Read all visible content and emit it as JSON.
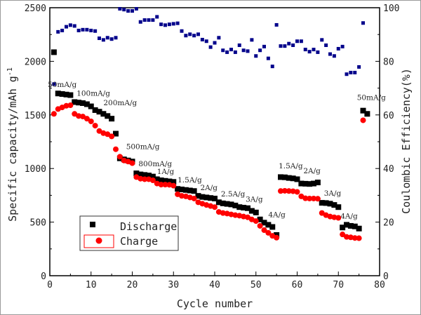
{
  "chart_data": {
    "type": "scatter",
    "xlabel": "Cycle number",
    "ylabel": "Specific capacity/mAh g",
    "ylabel_superscript": "-1",
    "y2label": "Coulombic Efficiency(%)",
    "xlim": [
      0,
      80
    ],
    "ylim": [
      0,
      2500
    ],
    "y2lim": [
      0,
      100
    ],
    "xticks": [
      0,
      10,
      20,
      30,
      40,
      50,
      60,
      70,
      80
    ],
    "yticks": [
      0,
      500,
      1000,
      1500,
      2000,
      2500
    ],
    "y2ticks": [
      0,
      20,
      40,
      60,
      80,
      100
    ],
    "grid": false,
    "legend": {
      "placement": "bottom-left",
      "entries": [
        "Discharge",
        "Charge"
      ]
    },
    "series": [
      {
        "name": "Discharge",
        "axis": "left",
        "marker": "square",
        "color": "#000000",
        "x": [
          1,
          2,
          3,
          4,
          5,
          6,
          7,
          8,
          9,
          10,
          11,
          12,
          13,
          14,
          15,
          16,
          17,
          18,
          19,
          20,
          21,
          22,
          23,
          24,
          25,
          26,
          27,
          28,
          29,
          30,
          31,
          32,
          33,
          34,
          35,
          36,
          37,
          38,
          39,
          40,
          41,
          42,
          43,
          44,
          45,
          46,
          47,
          48,
          49,
          50,
          51,
          52,
          53,
          54,
          55,
          56,
          57,
          58,
          59,
          60,
          61,
          62,
          63,
          64,
          65,
          66,
          67,
          68,
          69,
          70,
          71,
          72,
          73,
          74,
          75,
          76,
          77
        ],
        "values": [
          2085,
          1700,
          1695,
          1690,
          1685,
          1620,
          1615,
          1610,
          1600,
          1580,
          1545,
          1530,
          1510,
          1490,
          1465,
          1325,
          1095,
          1085,
          1075,
          1065,
          955,
          945,
          940,
          935,
          925,
          900,
          890,
          885,
          880,
          875,
          810,
          805,
          800,
          795,
          790,
          745,
          735,
          730,
          725,
          720,
          685,
          675,
          670,
          665,
          655,
          640,
          635,
          630,
          605,
          590,
          525,
          495,
          475,
          455,
          380,
          920,
          918,
          912,
          908,
          900,
          860,
          858,
          856,
          860,
          870,
          680,
          678,
          672,
          660,
          640,
          450,
          475,
          465,
          460,
          440,
          1540,
          1510
        ]
      },
      {
        "name": "Charge",
        "axis": "left",
        "marker": "circle",
        "color": "#ff0000",
        "x": [
          1,
          2,
          3,
          4,
          5,
          6,
          7,
          8,
          9,
          10,
          11,
          12,
          13,
          14,
          15,
          16,
          17,
          18,
          19,
          20,
          21,
          22,
          23,
          24,
          25,
          26,
          27,
          28,
          29,
          30,
          31,
          32,
          33,
          34,
          35,
          36,
          37,
          38,
          39,
          40,
          41,
          42,
          43,
          44,
          45,
          46,
          47,
          48,
          49,
          50,
          51,
          52,
          53,
          54,
          55,
          56,
          57,
          58,
          59,
          60,
          61,
          62,
          63,
          64,
          65,
          66,
          67,
          68,
          69,
          70,
          71,
          72,
          73,
          74,
          75,
          76
        ],
        "values": [
          1510,
          1555,
          1570,
          1585,
          1590,
          1510,
          1490,
          1485,
          1465,
          1440,
          1400,
          1350,
          1330,
          1320,
          1300,
          1180,
          1110,
          1075,
          1065,
          1050,
          920,
          905,
          900,
          900,
          890,
          860,
          850,
          850,
          848,
          840,
          760,
          745,
          740,
          730,
          720,
          685,
          672,
          660,
          650,
          640,
          595,
          585,
          580,
          572,
          565,
          560,
          552,
          545,
          525,
          510,
          465,
          425,
          400,
          372,
          355,
          790,
          792,
          790,
          788,
          782,
          740,
          722,
          720,
          720,
          718,
          585,
          565,
          552,
          545,
          540,
          385,
          362,
          358,
          352,
          350,
          1450
        ]
      },
      {
        "axis": "right",
        "marker": "square",
        "color": "#00008b",
        "x": [
          1,
          2,
          3,
          4,
          5,
          6,
          7,
          8,
          9,
          10,
          11,
          12,
          13,
          14,
          15,
          16,
          17,
          18,
          19,
          20,
          21,
          22,
          23,
          24,
          25,
          26,
          27,
          28,
          29,
          30,
          31,
          32,
          33,
          34,
          35,
          36,
          37,
          38,
          39,
          40,
          41,
          42,
          43,
          44,
          45,
          46,
          47,
          48,
          49,
          50,
          51,
          52,
          53,
          54,
          55,
          56,
          57,
          58,
          59,
          60,
          61,
          62,
          63,
          64,
          65,
          66,
          67,
          68,
          69,
          70,
          71,
          72,
          73,
          74,
          75,
          76
        ],
        "values": [
          71.5,
          91,
          91.5,
          92.9,
          93.5,
          93.2,
          91.5,
          91.8,
          91.8,
          91.5,
          91.3,
          88.6,
          88,
          88.8,
          88.3,
          88.8,
          99.6,
          99.3,
          98.8,
          98.8,
          99.6,
          94.7,
          95.4,
          95.4,
          95.4,
          96.6,
          93.8,
          93.5,
          93.8,
          94,
          94.2,
          91.3,
          89.6,
          90.1,
          89.6,
          90.1,
          88.1,
          87.5,
          85.3,
          86.9,
          88.8,
          84.1,
          83.4,
          84.4,
          83.4,
          86,
          84.1,
          83.8,
          88,
          82,
          84.1,
          85.5,
          81.1,
          78.1,
          93.6,
          85.7,
          85.7,
          86.6,
          86,
          87.5,
          87.5,
          84.4,
          83.6,
          84.4,
          83.4,
          88,
          86,
          82.7,
          82,
          84.7,
          85.5,
          75.2,
          75.8,
          75.8,
          77.9,
          94.3
        ]
      }
    ],
    "annotations": [
      {
        "text": "50mA/g",
        "x": -0.5,
        "y": 1760
      },
      {
        "text": "100mA/g",
        "x": 6.5,
        "y": 1680
      },
      {
        "text": "200mA/g",
        "x": 13,
        "y": 1590
      },
      {
        "text": "500mA/g",
        "x": 18.5,
        "y": 1180
      },
      {
        "text": "800mA/g",
        "x": 21.5,
        "y": 1020
      },
      {
        "text": "1A/g",
        "x": 26,
        "y": 950
      },
      {
        "text": "1.5A/g",
        "x": 31,
        "y": 870
      },
      {
        "text": "2A/g",
        "x": 36.5,
        "y": 800
      },
      {
        "text": "2.5A/g",
        "x": 41.5,
        "y": 740
      },
      {
        "text": "3A/g",
        "x": 47.5,
        "y": 690
      },
      {
        "text": "4A/g",
        "x": 53,
        "y": 545
      },
      {
        "text": "1.5A/g",
        "x": 55.5,
        "y": 1000
      },
      {
        "text": "2A/g",
        "x": 61.5,
        "y": 955
      },
      {
        "text": "3A/g",
        "x": 66.5,
        "y": 745
      },
      {
        "text": "4A/g",
        "x": 70.5,
        "y": 535
      },
      {
        "text": "50mA/g",
        "x": 74.5,
        "y": 1640
      }
    ]
  }
}
